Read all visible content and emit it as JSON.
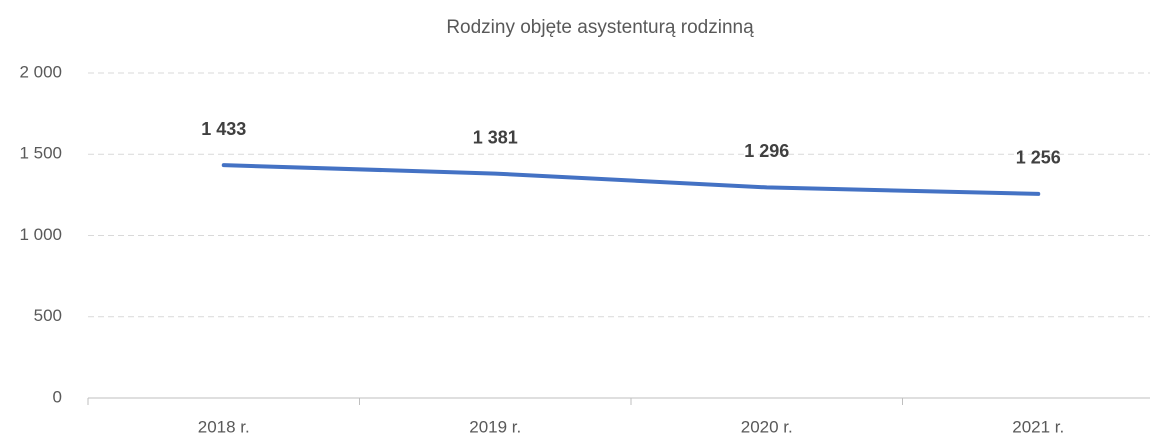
{
  "chart_data": {
    "type": "line",
    "title": "Rodziny objęte asystenturą rodzinną",
    "categories": [
      "2018 r.",
      "2019 r.",
      "2020 r.",
      "2021 r."
    ],
    "series": [
      {
        "name": "Rodziny objęte asystenturą rodzinną",
        "color": "#4472c4",
        "values": [
          1433,
          1381,
          1296,
          1256
        ],
        "value_labels": [
          "1 433",
          "1 381",
          "1 296",
          "1 256"
        ]
      }
    ],
    "ylim": [
      0,
      2000
    ],
    "yticks": [
      0,
      500,
      {
        "value": 1000,
        "label": "1 000"
      },
      {
        "value": 1500,
        "label": "1 500"
      },
      {
        "value": 2000,
        "label": "2 000"
      }
    ],
    "grid": true
  }
}
